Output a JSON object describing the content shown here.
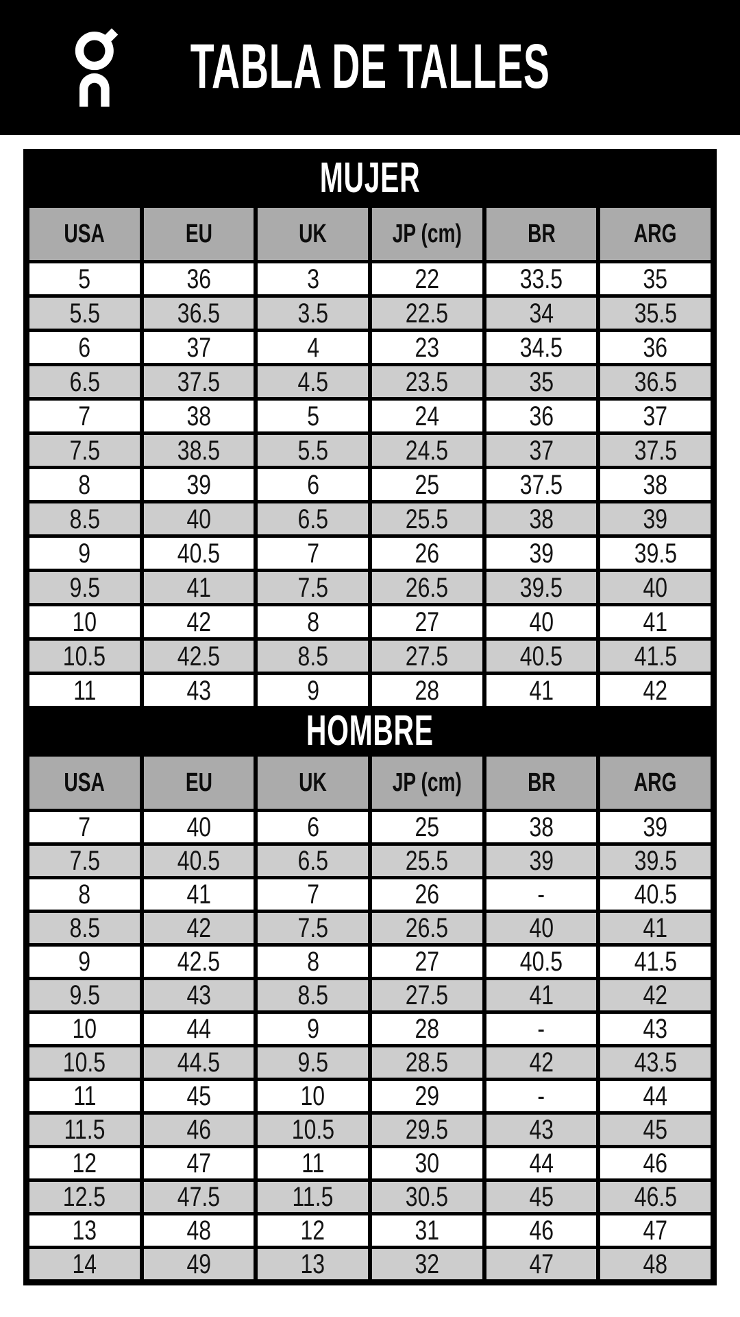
{
  "header": {
    "title": "TABLA DE TALLES",
    "logo": "on-logo"
  },
  "colors": {
    "background_band": "#000000",
    "header_cell": "#ababab",
    "row_alt": "#cdcdcd",
    "row_plain": "#ffffff",
    "title_text": "#ffffff",
    "cell_text": "#141414"
  },
  "chart_data": [
    {
      "type": "table",
      "title": "MUJER",
      "columns": [
        "USA",
        "EU",
        "UK",
        "JP (cm)",
        "BR",
        "ARG"
      ],
      "rows": [
        [
          "5",
          "36",
          "3",
          "22",
          "33.5",
          "35"
        ],
        [
          "5.5",
          "36.5",
          "3.5",
          "22.5",
          "34",
          "35.5"
        ],
        [
          "6",
          "37",
          "4",
          "23",
          "34.5",
          "36"
        ],
        [
          "6.5",
          "37.5",
          "4.5",
          "23.5",
          "35",
          "36.5"
        ],
        [
          "7",
          "38",
          "5",
          "24",
          "36",
          "37"
        ],
        [
          "7.5",
          "38.5",
          "5.5",
          "24.5",
          "37",
          "37.5"
        ],
        [
          "8",
          "39",
          "6",
          "25",
          "37.5",
          "38"
        ],
        [
          "8.5",
          "40",
          "6.5",
          "25.5",
          "38",
          "39"
        ],
        [
          "9",
          "40.5",
          "7",
          "26",
          "39",
          "39.5"
        ],
        [
          "9.5",
          "41",
          "7.5",
          "26.5",
          "39.5",
          "40"
        ],
        [
          "10",
          "42",
          "8",
          "27",
          "40",
          "41"
        ],
        [
          "10.5",
          "42.5",
          "8.5",
          "27.5",
          "40.5",
          "41.5"
        ],
        [
          "11",
          "43",
          "9",
          "28",
          "41",
          "42"
        ]
      ],
      "layout_hints": {
        "row_striping": "white/gray alternating",
        "grid": "black separators"
      }
    },
    {
      "type": "table",
      "title": "HOMBRE",
      "columns": [
        "USA",
        "EU",
        "UK",
        "JP (cm)",
        "BR",
        "ARG"
      ],
      "rows": [
        [
          "7",
          "40",
          "6",
          "25",
          "38",
          "39"
        ],
        [
          "7.5",
          "40.5",
          "6.5",
          "25.5",
          "39",
          "39.5"
        ],
        [
          "8",
          "41",
          "7",
          "26",
          "-",
          "40.5"
        ],
        [
          "8.5",
          "42",
          "7.5",
          "26.5",
          "40",
          "41"
        ],
        [
          "9",
          "42.5",
          "8",
          "27",
          "40.5",
          "41.5"
        ],
        [
          "9.5",
          "43",
          "8.5",
          "27.5",
          "41",
          "42"
        ],
        [
          "10",
          "44",
          "9",
          "28",
          "-",
          "43"
        ],
        [
          "10.5",
          "44.5",
          "9.5",
          "28.5",
          "42",
          "43.5"
        ],
        [
          "11",
          "45",
          "10",
          "29",
          "-",
          "44"
        ],
        [
          "11.5",
          "46",
          "10.5",
          "29.5",
          "43",
          "45"
        ],
        [
          "12",
          "47",
          "11",
          "30",
          "44",
          "46"
        ],
        [
          "12.5",
          "47.5",
          "11.5",
          "30.5",
          "45",
          "46.5"
        ],
        [
          "13",
          "48",
          "12",
          "31",
          "46",
          "47"
        ],
        [
          "14",
          "49",
          "13",
          "32",
          "47",
          "48"
        ]
      ],
      "layout_hints": {
        "row_striping": "white/gray alternating",
        "grid": "black separators"
      }
    }
  ]
}
